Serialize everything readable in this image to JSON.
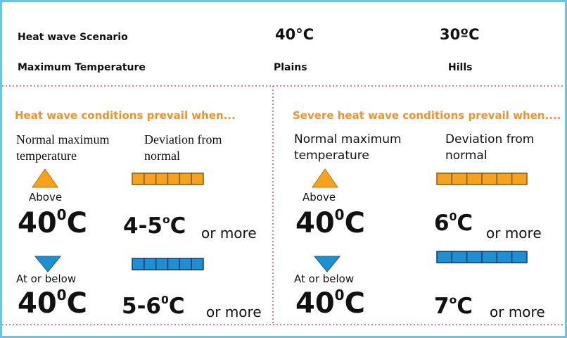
{
  "header": {
    "scenario_label": "Heat wave Scenario",
    "plains_temp": "40°C",
    "hills_temp": "30ºC",
    "max_temp_label": "Maximum Temperature",
    "plains_label": "Plains",
    "hills_label": "Hills"
  },
  "panels": [
    {
      "title": "Heat wave conditions prevail when...",
      "normal_label": "Normal maximum temperature",
      "deviation_label": "Deviation from normal",
      "rows": [
        {
          "condition": "Above",
          "temp": {
            "number": "40",
            "degree": "0",
            "unit": "C"
          },
          "deviation": {
            "number": "4-5",
            "degree": "o",
            "unit": "C"
          },
          "suffix": "or more"
        },
        {
          "condition": "At or below",
          "temp": {
            "number": "40",
            "degree": "0",
            "unit": "C"
          },
          "deviation": {
            "number": "5-6",
            "degree": "0",
            "unit": "C"
          },
          "suffix": "or more"
        }
      ]
    },
    {
      "title": "Severe heat wave conditions prevail when....",
      "normal_label": "Normal maximum temperature",
      "deviation_label": "Deviation from normal",
      "rows": [
        {
          "condition": "Above",
          "temp": {
            "number": "40",
            "degree": "0",
            "unit": "C"
          },
          "deviation": {
            "number": "6",
            "degree": "0",
            "unit": "C"
          },
          "suffix": "or more"
        },
        {
          "condition": "At or below",
          "temp": {
            "number": "40",
            "degree": "0",
            "unit": "C"
          },
          "deviation": {
            "number": "7",
            "degree": "o",
            "unit": "C"
          },
          "suffix": "or more"
        }
      ]
    }
  ]
}
